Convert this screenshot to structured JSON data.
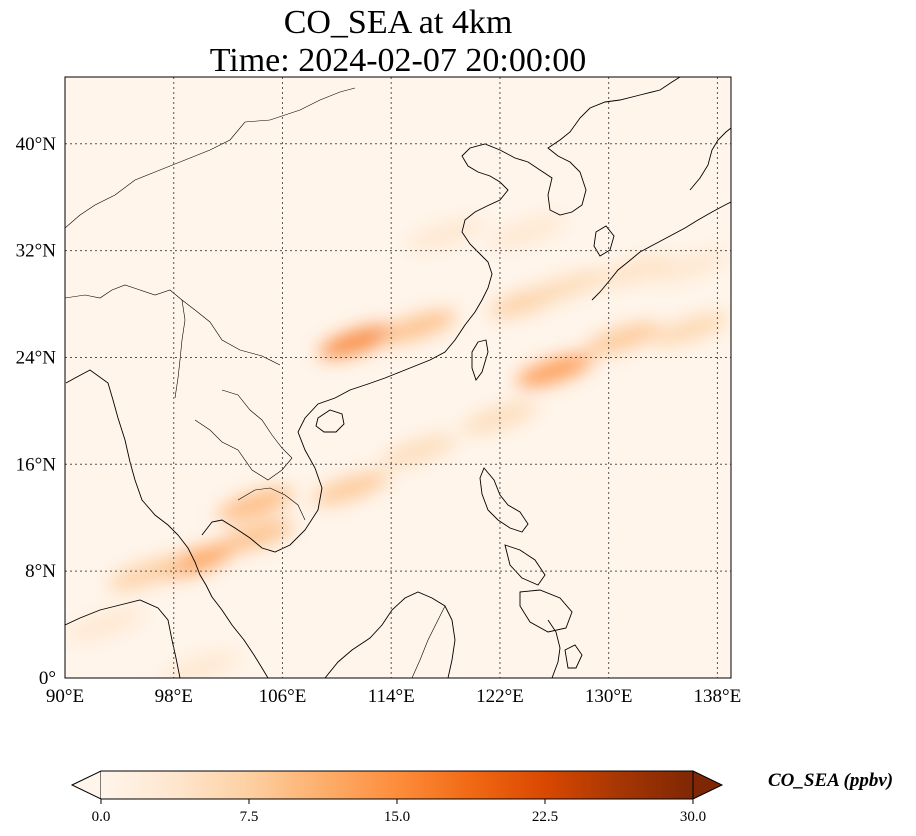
{
  "title": {
    "line1": "CO_SEA at 4km",
    "line2": "Time: 2024-02-07 20:00:00"
  },
  "map": {
    "lon_range": [
      90,
      139
    ],
    "lat_range": [
      0,
      45
    ],
    "lon_ticks": [
      {
        "value": 90,
        "label": "90°E"
      },
      {
        "value": 98,
        "label": "98°E"
      },
      {
        "value": 106,
        "label": "106°E"
      },
      {
        "value": 114,
        "label": "114°E"
      },
      {
        "value": 122,
        "label": "122°E"
      },
      {
        "value": 130,
        "label": "130°E"
      },
      {
        "value": 138,
        "label": "138°E"
      }
    ],
    "lat_ticks": [
      {
        "value": 0,
        "label": "0°"
      },
      {
        "value": 8,
        "label": "8°N"
      },
      {
        "value": 16,
        "label": "16°N"
      },
      {
        "value": 24,
        "label": "24°N"
      },
      {
        "value": 32,
        "label": "32°N"
      },
      {
        "value": 40,
        "label": "40°N"
      }
    ],
    "gridlines": "dotted",
    "background_color": "#fff5eb",
    "plumes": [
      {
        "lon": 111.5,
        "lat": 25.2,
        "value": 17
      },
      {
        "lon": 116,
        "lat": 26.3,
        "value": 10
      },
      {
        "lon": 124,
        "lat": 28.2,
        "value": 8
      },
      {
        "lon": 127,
        "lat": 29.3,
        "value": 6
      },
      {
        "lon": 132,
        "lat": 30.5,
        "value": 5
      },
      {
        "lon": 136,
        "lat": 30.8,
        "value": 4
      },
      {
        "lon": 118,
        "lat": 33.2,
        "value": 4
      },
      {
        "lon": 124,
        "lat": 33.4,
        "value": 4
      },
      {
        "lon": 122,
        "lat": 19.5,
        "value": 6
      },
      {
        "lon": 126,
        "lat": 23.0,
        "value": 15
      },
      {
        "lon": 131,
        "lat": 25.4,
        "value": 9
      },
      {
        "lon": 136,
        "lat": 26.1,
        "value": 7
      },
      {
        "lon": 116,
        "lat": 17.0,
        "value": 6
      },
      {
        "lon": 111,
        "lat": 14.2,
        "value": 9
      },
      {
        "lon": 104,
        "lat": 13.0,
        "value": 11
      },
      {
        "lon": 104,
        "lat": 10.6,
        "value": 10
      },
      {
        "lon": 99.5,
        "lat": 8.7,
        "value": 14
      },
      {
        "lon": 96,
        "lat": 7.8,
        "value": 8
      },
      {
        "lon": 93,
        "lat": 4.0,
        "value": 4
      },
      {
        "lon": 100,
        "lat": 0.8,
        "value": 4
      }
    ]
  },
  "colorbar": {
    "label": "CO_SEA (ppbv)",
    "min": 0.0,
    "max": 30.0,
    "ticks": [
      "0.0",
      "7.5",
      "15.0",
      "22.5",
      "30.0"
    ],
    "extend": "both",
    "colors": [
      "#fff5eb",
      "#fee6ce",
      "#fdd0a2",
      "#fdae6b",
      "#fd8d3c",
      "#f16913",
      "#d94801",
      "#a63603",
      "#7f2704"
    ]
  }
}
